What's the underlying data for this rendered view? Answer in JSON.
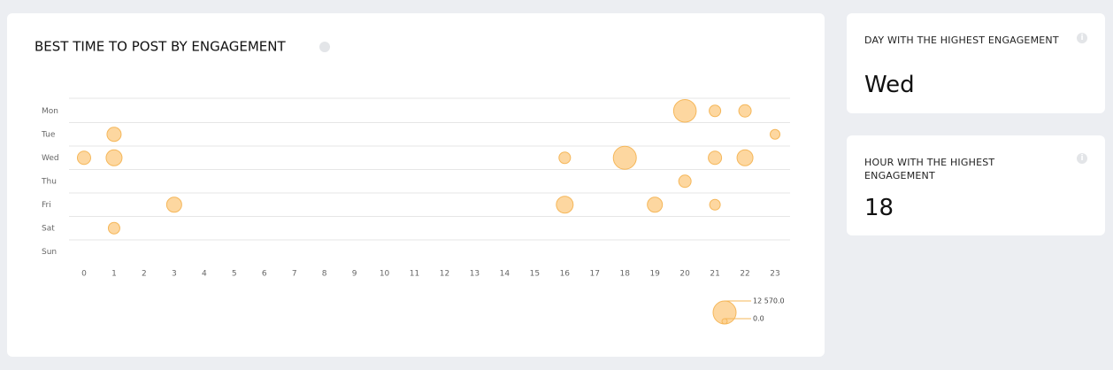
{
  "chart_data": {
    "type": "bubble",
    "title": "BEST TIME TO POST BY ENGAGEMENT",
    "y_categories": [
      "Mon",
      "Tue",
      "Wed",
      "Thu",
      "Fri",
      "Sat",
      "Sun"
    ],
    "xlim": [
      -0.5,
      23.5
    ],
    "xticks": [
      0,
      1,
      2,
      3,
      4,
      5,
      6,
      7,
      8,
      9,
      10,
      11,
      12,
      13,
      14,
      15,
      16,
      17,
      18,
      19,
      20,
      21,
      22,
      23
    ],
    "x": [
      20,
      21,
      22,
      1,
      23,
      0,
      1,
      16,
      18,
      21,
      22,
      20,
      3,
      16,
      19,
      21,
      1
    ],
    "y": [
      "Mon",
      "Mon",
      "Mon",
      "Tue",
      "Tue",
      "Wed",
      "Wed",
      "Wed",
      "Wed",
      "Wed",
      "Wed",
      "Thu",
      "Fri",
      "Fri",
      "Fri",
      "Fri",
      "Sat"
    ],
    "values": [
      12000,
      1540,
      2010,
      3140,
      790,
      2550,
      4530,
      1540,
      12570,
      2550,
      4530,
      2010,
      3800,
      5310,
      3800,
      1130,
      1540
    ],
    "color": "#fdd08f",
    "stroke": "#f5b75a",
    "size_legend": [
      {
        "value": 12570,
        "label": "12 570.0"
      },
      {
        "value": 0,
        "label": "0.0"
      }
    ],
    "grid": true
  },
  "cards": [
    {
      "title": "DAY WITH THE HIGHEST ENGAGEMENT",
      "value": "Wed"
    },
    {
      "title": "HOUR WITH THE HIGHEST ENGAGEMENT",
      "value": 18
    }
  ]
}
